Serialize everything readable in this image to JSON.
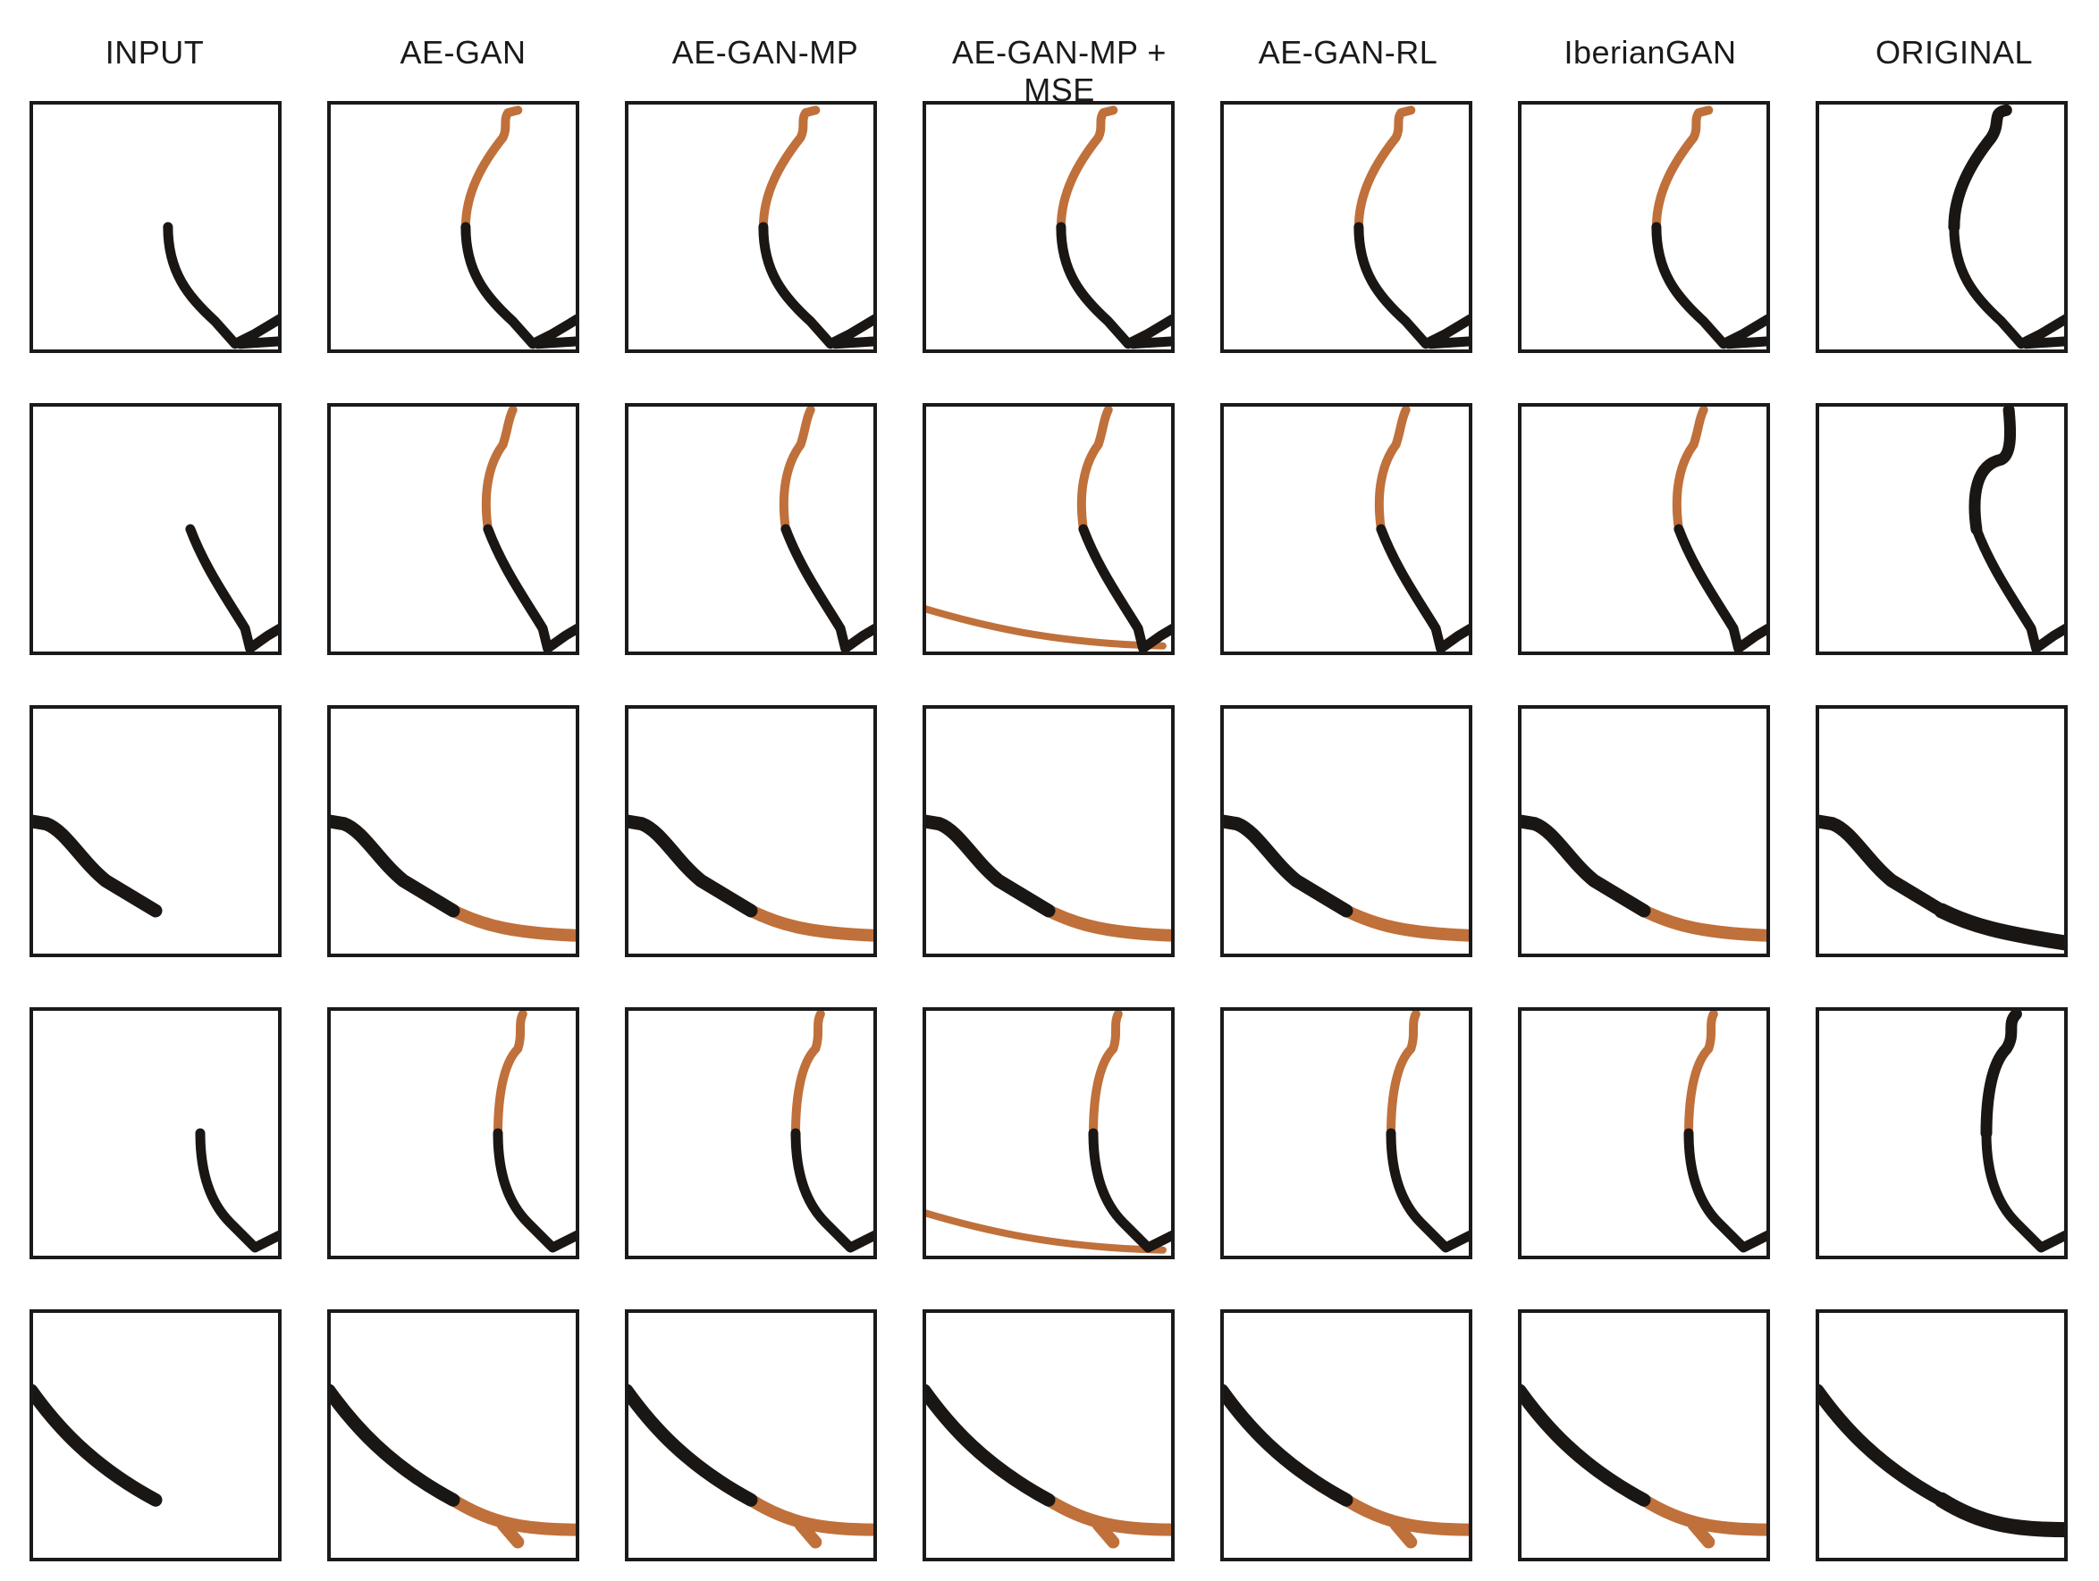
{
  "columns": [
    "INPUT",
    "AE-GAN",
    "AE-GAN-MP",
    "AE-GAN-MP + MSE",
    "AE-GAN-RL",
    "IberianGAN",
    "ORIGINAL"
  ],
  "rows": [
    {
      "profile": "tall-curve-a"
    },
    {
      "profile": "tall-curve-b"
    },
    {
      "profile": "low-arc-a"
    },
    {
      "profile": "tall-curve-c"
    },
    {
      "profile": "low-arc-b"
    }
  ],
  "colors": {
    "input_stroke": "#1a1614",
    "generated_stroke": "#c0703a",
    "frame": "#1a1a1a"
  }
}
